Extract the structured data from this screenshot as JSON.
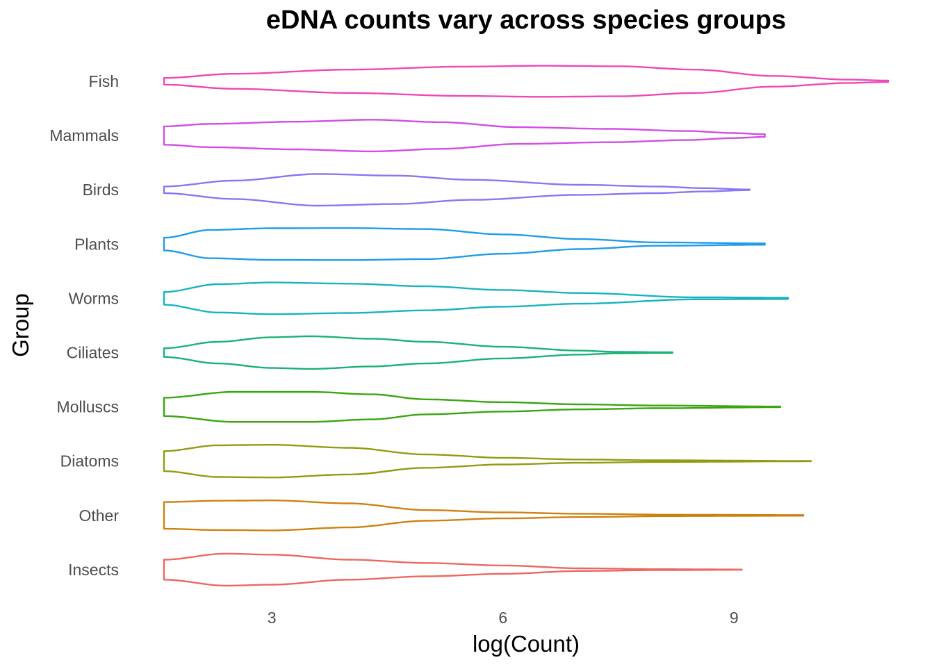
{
  "chart_data": {
    "type": "violin",
    "title": "eDNA counts vary across species groups",
    "xlabel": "log(Count)",
    "ylabel": "Group",
    "xlim": [
      1.6,
      11.0
    ],
    "x_ticks": [
      "3",
      "6",
      "9"
    ],
    "x_tick_values": [
      3,
      6,
      9
    ],
    "grid": false,
    "legend": "none",
    "categories": [
      "Fish",
      "Mammals",
      "Birds",
      "Plants",
      "Worms",
      "Ciliates",
      "Molluscs",
      "Diatoms",
      "Other",
      "Insects"
    ],
    "series": [
      {
        "group": "Fish",
        "color": "#f047b8",
        "range": [
          1.6,
          11.0
        ],
        "density": [
          [
            1.6,
            0.2
          ],
          [
            2.5,
            0.45
          ],
          [
            4.0,
            0.7
          ],
          [
            5.5,
            0.88
          ],
          [
            6.5,
            0.93
          ],
          [
            7.5,
            0.9
          ],
          [
            8.5,
            0.7
          ],
          [
            9.5,
            0.32
          ],
          [
            10.5,
            0.1
          ],
          [
            11.0,
            0.04
          ]
        ]
      },
      {
        "group": "Mammals",
        "color": "#d24de5",
        "range": [
          1.6,
          9.4
        ],
        "density": [
          [
            1.6,
            0.55
          ],
          [
            2.2,
            0.7
          ],
          [
            3.3,
            0.83
          ],
          [
            4.3,
            0.95
          ],
          [
            5.2,
            0.8
          ],
          [
            6.2,
            0.5
          ],
          [
            7.4,
            0.4
          ],
          [
            8.4,
            0.27
          ],
          [
            9.0,
            0.15
          ],
          [
            9.4,
            0.08
          ]
        ]
      },
      {
        "group": "Birds",
        "color": "#8b76f2",
        "range": [
          1.6,
          9.2
        ],
        "density": [
          [
            1.6,
            0.2
          ],
          [
            2.5,
            0.55
          ],
          [
            3.6,
            0.95
          ],
          [
            4.6,
            0.85
          ],
          [
            5.6,
            0.6
          ],
          [
            7.0,
            0.3
          ],
          [
            8.0,
            0.2
          ],
          [
            8.6,
            0.1
          ],
          [
            9.2,
            0.02
          ]
        ]
      },
      {
        "group": "Plants",
        "color": "#1f9ce8",
        "range": [
          1.6,
          9.4
        ],
        "density": [
          [
            1.6,
            0.38
          ],
          [
            2.2,
            0.85
          ],
          [
            3.0,
            0.95
          ],
          [
            4.0,
            0.96
          ],
          [
            5.0,
            0.9
          ],
          [
            6.0,
            0.58
          ],
          [
            7.0,
            0.3
          ],
          [
            8.0,
            0.1
          ],
          [
            9.4,
            0.04
          ]
        ]
      },
      {
        "group": "Worms",
        "color": "#18b3c0",
        "range": [
          1.6,
          9.7
        ],
        "density": [
          [
            1.6,
            0.38
          ],
          [
            2.3,
            0.85
          ],
          [
            3.0,
            0.95
          ],
          [
            4.0,
            0.88
          ],
          [
            5.0,
            0.72
          ],
          [
            6.0,
            0.5
          ],
          [
            7.0,
            0.32
          ],
          [
            8.5,
            0.06
          ],
          [
            9.7,
            0.04
          ]
        ]
      },
      {
        "group": "Ciliates",
        "color": "#1bb275",
        "range": [
          1.6,
          8.2
        ],
        "density": [
          [
            1.6,
            0.26
          ],
          [
            2.3,
            0.65
          ],
          [
            3.0,
            0.92
          ],
          [
            3.5,
            0.98
          ],
          [
            4.3,
            0.83
          ],
          [
            5.0,
            0.65
          ],
          [
            6.0,
            0.35
          ],
          [
            7.0,
            0.12
          ],
          [
            7.5,
            0.04
          ],
          [
            8.2,
            0.02
          ]
        ]
      },
      {
        "group": "Molluscs",
        "color": "#3aa510",
        "range": [
          1.6,
          9.6
        ],
        "density": [
          [
            1.6,
            0.55
          ],
          [
            2.5,
            0.9
          ],
          [
            3.5,
            0.9
          ],
          [
            4.3,
            0.75
          ],
          [
            5.0,
            0.45
          ],
          [
            6.0,
            0.28
          ],
          [
            7.0,
            0.15
          ],
          [
            8.0,
            0.08
          ],
          [
            9.6,
            0.02
          ]
        ]
      },
      {
        "group": "Diatoms",
        "color": "#939b12",
        "range": [
          1.6,
          10.0
        ],
        "density": [
          [
            1.6,
            0.6
          ],
          [
            2.3,
            0.95
          ],
          [
            3.0,
            0.98
          ],
          [
            4.0,
            0.8
          ],
          [
            5.0,
            0.4
          ],
          [
            6.0,
            0.2
          ],
          [
            7.0,
            0.1
          ],
          [
            8.0,
            0.05
          ],
          [
            10.0,
            0.01
          ]
        ]
      },
      {
        "group": "Other",
        "color": "#cc8210",
        "range": [
          1.6,
          9.9
        ],
        "density": [
          [
            1.6,
            0.8
          ],
          [
            2.3,
            0.88
          ],
          [
            3.0,
            0.9
          ],
          [
            4.0,
            0.72
          ],
          [
            5.0,
            0.32
          ],
          [
            6.0,
            0.18
          ],
          [
            7.0,
            0.1
          ],
          [
            8.2,
            0.04
          ],
          [
            9.9,
            0.02
          ]
        ]
      },
      {
        "group": "Insects",
        "color": "#ec6860",
        "range": [
          1.6,
          9.1
        ],
        "density": [
          [
            1.6,
            0.6
          ],
          [
            2.4,
            0.96
          ],
          [
            3.0,
            0.9
          ],
          [
            4.0,
            0.6
          ],
          [
            5.0,
            0.4
          ],
          [
            6.0,
            0.25
          ],
          [
            7.0,
            0.08
          ],
          [
            8.0,
            0.03
          ],
          [
            9.1,
            0.01
          ]
        ]
      }
    ]
  }
}
